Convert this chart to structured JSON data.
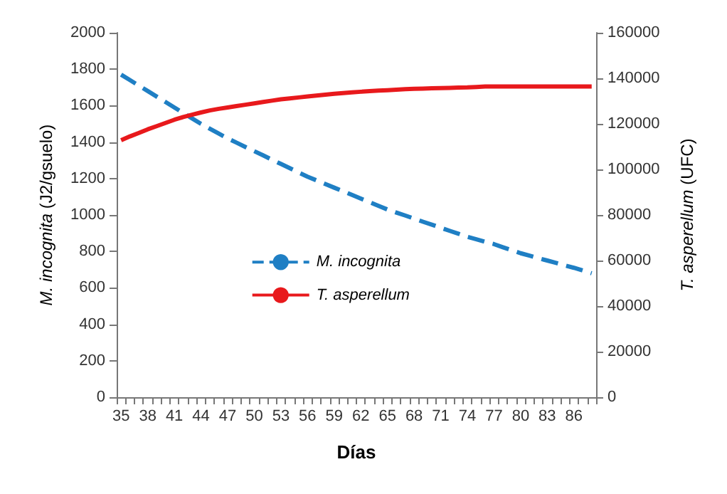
{
  "chart_data": {
    "type": "line",
    "xlabel": "Días",
    "ylabel": "M. incognita (J2/gsuelo)",
    "y2label": "T. asperellum (UFC)",
    "categories": [
      "35",
      null,
      null,
      "38",
      null,
      null,
      "41",
      null,
      null,
      "44",
      null,
      null,
      "47",
      null,
      null,
      "50",
      null,
      null,
      "53",
      null,
      null,
      "56",
      null,
      null,
      "59",
      null,
      null,
      "62",
      null,
      null,
      "65",
      null,
      null,
      "68",
      null,
      null,
      "71",
      null,
      null,
      "74",
      null,
      null,
      "77",
      null,
      null,
      "80",
      null,
      null,
      "83",
      null,
      null,
      "86",
      null,
      null
    ],
    "series": [
      {
        "name": "M. incognita",
        "color": "#1f7fc4",
        "line_style": "dashed",
        "values": [
          1770,
          1740,
          1710,
          1680,
          1650,
          1620,
          1590,
          1560,
          1530,
          1500,
          1473,
          1447,
          1420,
          1397,
          1373,
          1350,
          1327,
          1303,
          1280,
          1257,
          1233,
          1210,
          1190,
          1170,
          1150,
          1130,
          1110,
          1090,
          1070,
          1050,
          1030,
          1013,
          997,
          980,
          963,
          947,
          930,
          913,
          897,
          880,
          867,
          853,
          840,
          823,
          807,
          790,
          777,
          763,
          750,
          737,
          723,
          710,
          695,
          680
        ]
      },
      {
        "name": "T. asperellum",
        "color": "#e8191c",
        "line_style": "solid",
        "axis": "y2",
        "values": [
          112800,
          114500,
          116000,
          117600,
          119000,
          120400,
          121800,
          123000,
          124000,
          125000,
          125900,
          126600,
          127200,
          127800,
          128400,
          129000,
          129600,
          130200,
          130800,
          131200,
          131600,
          132000,
          132400,
          132800,
          133200,
          133500,
          133800,
          134100,
          134400,
          134600,
          134800,
          135000,
          135200,
          135400,
          135500,
          135600,
          135700,
          135800,
          135900,
          136000,
          136200,
          136400,
          136400,
          136400,
          136400,
          136400,
          136400,
          136400,
          136400,
          136400,
          136400,
          136400,
          136400,
          136400
        ]
      }
    ],
    "ylim": [
      0,
      2000
    ],
    "yticks": [
      0,
      200,
      400,
      600,
      800,
      1000,
      1200,
      1400,
      1600,
      1800,
      2000
    ],
    "y2lim": [
      0,
      160000
    ],
    "y2ticks": [
      0,
      20000,
      40000,
      60000,
      80000,
      100000,
      120000,
      140000,
      160000
    ],
    "marker": "none",
    "grid": false,
    "legend": "center"
  }
}
